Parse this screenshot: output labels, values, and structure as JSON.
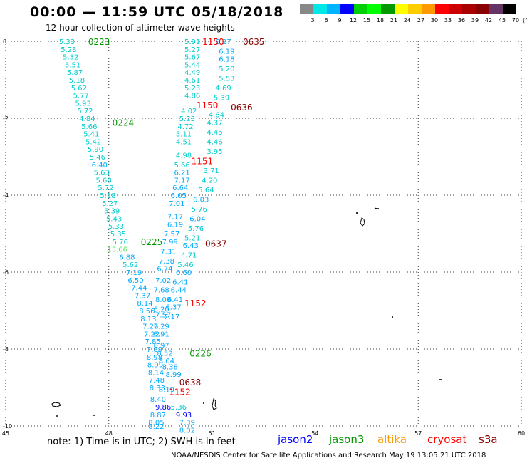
{
  "header": {
    "title": "00:00 — 11:59 UTC 05/18/2018",
    "subtitle": "12 hour collection of altimeter wave heights"
  },
  "colorbar": {
    "colors": [
      "#888888",
      "#00e8e8",
      "#00b4ff",
      "#0000ff",
      "#00d000",
      "#00ff00",
      "#009900",
      "#ffff00",
      "#ffcc00",
      "#ff9900",
      "#ff0000",
      "#cc0000",
      "#aa0000",
      "#880000",
      "#663366",
      "#000000"
    ],
    "labels": [
      "3",
      "6",
      "9",
      "12",
      "15",
      "18",
      "21",
      "24",
      "27",
      "30",
      "33",
      "36",
      "39",
      "42",
      "45",
      "70"
    ],
    "unit": "(ft)"
  },
  "axes": {
    "x_ticks": [
      "45",
      "48",
      "51",
      "54",
      "57",
      "60"
    ],
    "y_ticks": [
      "0",
      "-2",
      "-4",
      "-6",
      "-8",
      "-10"
    ]
  },
  "footer": {
    "note": "note: 1) Time is in UTC; 2) SWH is in feet",
    "credit": "NOAA/NESDIS Center for Satellite Applications and Research    May 19 13:05:21 UTC 2018",
    "legend": [
      {
        "label": "jason2",
        "color": "#0000ff"
      },
      {
        "label": "jason3",
        "color": "#009900"
      },
      {
        "label": "altika",
        "color": "#ff9900"
      },
      {
        "label": "cryosat",
        "color": "#ff0000"
      },
      {
        "label": "s3a",
        "color": "#880000"
      }
    ]
  },
  "track_times": [
    {
      "text": "0223",
      "color": "#009900",
      "lon": 47.4,
      "lat": 0.0
    },
    {
      "text": "0224",
      "color": "#009900",
      "lon": 48.1,
      "lat": -2.1
    },
    {
      "text": "0225",
      "color": "#009900",
      "lon": 48.93,
      "lat": -5.2
    },
    {
      "text": "0226",
      "color": "#009900",
      "lon": 50.35,
      "lat": -8.1
    },
    {
      "text": "1150",
      "color": "#ff0000",
      "lon": 50.72,
      "lat": 0.0
    },
    {
      "text": "1150",
      "color": "#ff0000",
      "lon": 50.55,
      "lat": -1.65
    },
    {
      "text": "1151",
      "color": "#ff0000",
      "lon": 50.4,
      "lat": -3.1
    },
    {
      "text": "1152",
      "color": "#ff0000",
      "lon": 50.2,
      "lat": -6.8
    },
    {
      "text": "1152",
      "color": "#ff0000",
      "lon": 49.75,
      "lat": -9.1
    },
    {
      "text": "0635",
      "color": "#880000",
      "lon": 51.9,
      "lat": 0.0
    },
    {
      "text": "0636",
      "color": "#880000",
      "lon": 51.55,
      "lat": -1.7
    },
    {
      "text": "0637",
      "color": "#880000",
      "lon": 50.8,
      "lat": -5.25
    },
    {
      "text": "0638",
      "color": "#880000",
      "lon": 50.05,
      "lat": -8.85
    }
  ],
  "observations": [
    {
      "v": "5.33",
      "c": "#00cccc",
      "lon": 46.55,
      "lat": 0.0
    },
    {
      "v": "5.28",
      "c": "#00cccc",
      "lon": 46.6,
      "lat": -0.2
    },
    {
      "v": "5.32",
      "c": "#00cccc",
      "lon": 46.66,
      "lat": -0.4
    },
    {
      "v": "5.51",
      "c": "#00cccc",
      "lon": 46.72,
      "lat": -0.6
    },
    {
      "v": "5.87",
      "c": "#00cccc",
      "lon": 46.78,
      "lat": -0.8
    },
    {
      "v": "5.18",
      "c": "#00cccc",
      "lon": 46.84,
      "lat": -1.0
    },
    {
      "v": "5.62",
      "c": "#00cccc",
      "lon": 46.9,
      "lat": -1.2
    },
    {
      "v": "5.77",
      "c": "#00cccc",
      "lon": 46.96,
      "lat": -1.4
    },
    {
      "v": "5.93",
      "c": "#00cccc",
      "lon": 47.02,
      "lat": -1.6
    },
    {
      "v": "5.72",
      "c": "#00cccc",
      "lon": 47.08,
      "lat": -1.8
    },
    {
      "v": "4.84",
      "c": "#00cccc",
      "lon": 47.14,
      "lat": -2.0
    },
    {
      "v": "5.66",
      "c": "#00cccc",
      "lon": 47.2,
      "lat": -2.2
    },
    {
      "v": "5.41",
      "c": "#00cccc",
      "lon": 47.26,
      "lat": -2.4
    },
    {
      "v": "5.42",
      "c": "#00cccc",
      "lon": 47.32,
      "lat": -2.6
    },
    {
      "v": "5.90",
      "c": "#00cccc",
      "lon": 47.38,
      "lat": -2.8
    },
    {
      "v": "5.46",
      "c": "#00cccc",
      "lon": 47.44,
      "lat": -3.0
    },
    {
      "v": "6.40",
      "c": "#00aaff",
      "lon": 47.5,
      "lat": -3.2
    },
    {
      "v": "5.63",
      "c": "#00cccc",
      "lon": 47.56,
      "lat": -3.4
    },
    {
      "v": "5.68",
      "c": "#00cccc",
      "lon": 47.62,
      "lat": -3.6
    },
    {
      "v": "5.72",
      "c": "#00cccc",
      "lon": 47.68,
      "lat": -3.8
    },
    {
      "v": "5.18",
      "c": "#00cccc",
      "lon": 47.74,
      "lat": -4.0
    },
    {
      "v": "5.27",
      "c": "#00cccc",
      "lon": 47.8,
      "lat": -4.2
    },
    {
      "v": "5.39",
      "c": "#00cccc",
      "lon": 47.86,
      "lat": -4.4
    },
    {
      "v": "5.43",
      "c": "#00cccc",
      "lon": 47.92,
      "lat": -4.6
    },
    {
      "v": "5.33",
      "c": "#00cccc",
      "lon": 47.98,
      "lat": -4.8
    },
    {
      "v": "5.35",
      "c": "#00cccc",
      "lon": 48.04,
      "lat": -5.0
    },
    {
      "v": "5.76",
      "c": "#00cccc",
      "lon": 48.1,
      "lat": -5.2
    },
    {
      "v": "13.66",
      "c": "#55dd55",
      "lon": 47.95,
      "lat": -5.4
    },
    {
      "v": "6.88",
      "c": "#00aaff",
      "lon": 48.3,
      "lat": -5.6
    },
    {
      "v": "5.62",
      "c": "#00cccc",
      "lon": 48.4,
      "lat": -5.8
    },
    {
      "v": "7.19",
      "c": "#00aaff",
      "lon": 48.5,
      "lat": -6.0
    },
    {
      "v": "6.50",
      "c": "#00aaff",
      "lon": 48.55,
      "lat": -6.2
    },
    {
      "v": "7.44",
      "c": "#00aaff",
      "lon": 48.65,
      "lat": -6.4
    },
    {
      "v": "7.37",
      "c": "#00aaff",
      "lon": 48.75,
      "lat": -6.6
    },
    {
      "v": "8.14",
      "c": "#00aaff",
      "lon": 48.82,
      "lat": -6.8
    },
    {
      "v": "8.56",
      "c": "#00aaff",
      "lon": 48.88,
      "lat": -7.0
    },
    {
      "v": "8.13",
      "c": "#00aaff",
      "lon": 48.92,
      "lat": -7.2
    },
    {
      "v": "7.26",
      "c": "#00aaff",
      "lon": 48.98,
      "lat": -7.4
    },
    {
      "v": "7.22",
      "c": "#00aaff",
      "lon": 49.02,
      "lat": -7.6
    },
    {
      "v": "7.85",
      "c": "#00aaff",
      "lon": 49.05,
      "lat": -7.8
    },
    {
      "v": "7.89",
      "c": "#00aaff",
      "lon": 49.1,
      "lat": -8.0
    },
    {
      "v": "8.98",
      "c": "#00aaff",
      "lon": 49.1,
      "lat": -8.2
    },
    {
      "v": "8.99",
      "c": "#00aaff",
      "lon": 49.12,
      "lat": -8.4
    },
    {
      "v": "8.14",
      "c": "#00aaff",
      "lon": 49.14,
      "lat": -8.6
    },
    {
      "v": "7.48",
      "c": "#00aaff",
      "lon": 49.16,
      "lat": -8.8
    },
    {
      "v": "8.33",
      "c": "#00aaff",
      "lon": 49.18,
      "lat": -9.0
    },
    {
      "v": "8.40",
      "c": "#00aaff",
      "lon": 49.2,
      "lat": -9.3
    },
    {
      "v": "9.86",
      "c": "#0000ff",
      "lon": 49.35,
      "lat": -9.5
    },
    {
      "v": "8.87",
      "c": "#00aaff",
      "lon": 49.2,
      "lat": -9.7
    },
    {
      "v": "8.05",
      "c": "#00aaff",
      "lon": 49.15,
      "lat": -9.9
    },
    {
      "v": "8.22",
      "c": "#00aaff",
      "lon": 49.15,
      "lat": -10.0
    },
    {
      "v": "5.91",
      "c": "#00cccc",
      "lon": 50.2,
      "lat": 0.0
    },
    {
      "v": "5.27",
      "c": "#00cccc",
      "lon": 50.2,
      "lat": -0.2
    },
    {
      "v": "5.67",
      "c": "#00cccc",
      "lon": 50.2,
      "lat": -0.4
    },
    {
      "v": "5.44",
      "c": "#00cccc",
      "lon": 50.2,
      "lat": -0.6
    },
    {
      "v": "4.49",
      "c": "#00cccc",
      "lon": 50.2,
      "lat": -0.8
    },
    {
      "v": "4.61",
      "c": "#00cccc",
      "lon": 50.2,
      "lat": -1.0
    },
    {
      "v": "5.23",
      "c": "#00cccc",
      "lon": 50.2,
      "lat": -1.2
    },
    {
      "v": "4.86",
      "c": "#00cccc",
      "lon": 50.2,
      "lat": -1.4
    },
    {
      "v": "4.02",
      "c": "#00cccc",
      "lon": 50.1,
      "lat": -1.8
    },
    {
      "v": "5.23",
      "c": "#00cccc",
      "lon": 50.05,
      "lat": -2.0
    },
    {
      "v": "4.72",
      "c": "#00cccc",
      "lon": 50.0,
      "lat": -2.2
    },
    {
      "v": "5.11",
      "c": "#00cccc",
      "lon": 49.95,
      "lat": -2.4
    },
    {
      "v": "4.51",
      "c": "#00cccc",
      "lon": 49.95,
      "lat": -2.6
    },
    {
      "v": "4.98",
      "c": "#00cccc",
      "lon": 49.95,
      "lat": -2.95
    },
    {
      "v": "5.66",
      "c": "#00cccc",
      "lon": 49.9,
      "lat": -3.2
    },
    {
      "v": "6.21",
      "c": "#00aaff",
      "lon": 49.9,
      "lat": -3.4
    },
    {
      "v": "7.17",
      "c": "#00aaff",
      "lon": 49.9,
      "lat": -3.6
    },
    {
      "v": "6.64",
      "c": "#00aaff",
      "lon": 49.85,
      "lat": -3.8
    },
    {
      "v": "6.05",
      "c": "#00aaff",
      "lon": 49.8,
      "lat": -4.0
    },
    {
      "v": "7.01",
      "c": "#00aaff",
      "lon": 49.75,
      "lat": -4.2
    },
    {
      "v": "7.17",
      "c": "#00aaff",
      "lon": 49.7,
      "lat": -4.55
    },
    {
      "v": "6.19",
      "c": "#00aaff",
      "lon": 49.7,
      "lat": -4.75
    },
    {
      "v": "7.57",
      "c": "#00aaff",
      "lon": 49.6,
      "lat": -5.0
    },
    {
      "v": "7.99",
      "c": "#00aaff",
      "lon": 49.55,
      "lat": -5.2
    },
    {
      "v": "7.31",
      "c": "#00aaff",
      "lon": 49.5,
      "lat": -5.45
    },
    {
      "v": "7.38",
      "c": "#00aaff",
      "lon": 49.45,
      "lat": -5.7
    },
    {
      "v": "6.74",
      "c": "#00aaff",
      "lon": 49.4,
      "lat": -5.9
    },
    {
      "v": "7.02",
      "c": "#00aaff",
      "lon": 49.35,
      "lat": -6.2
    },
    {
      "v": "7.68",
      "c": "#00aaff",
      "lon": 49.3,
      "lat": -6.45
    },
    {
      "v": "8.00",
      "c": "#00aaff",
      "lon": 49.35,
      "lat": -6.7
    },
    {
      "v": "6.20",
      "c": "#00aaff",
      "lon": 49.3,
      "lat": -6.95
    },
    {
      "v": "7.57",
      "c": "#00aaff",
      "lon": 49.35,
      "lat": -7.1
    },
    {
      "v": "7.29",
      "c": "#00aaff",
      "lon": 49.3,
      "lat": -7.4
    },
    {
      "v": "6.91",
      "c": "#00aaff",
      "lon": 49.3,
      "lat": -7.6
    },
    {
      "v": "6.97",
      "c": "#00aaff",
      "lon": 49.3,
      "lat": -7.9
    },
    {
      "v": "8.52",
      "c": "#00aaff",
      "lon": 49.4,
      "lat": -8.1
    },
    {
      "v": "8.04",
      "c": "#00aaff",
      "lon": 49.45,
      "lat": -8.3
    },
    {
      "v": "8.38",
      "c": "#00aaff",
      "lon": 49.55,
      "lat": -8.45
    },
    {
      "v": "8.99",
      "c": "#00aaff",
      "lon": 49.65,
      "lat": -8.65
    },
    {
      "v": "8.19",
      "c": "#00aaff",
      "lon": 49.45,
      "lat": -9.05
    },
    {
      "v": "5.36",
      "c": "#00cccc",
      "lon": 49.8,
      "lat": -9.5
    },
    {
      "v": "9.93",
      "c": "#0000ff",
      "lon": 49.95,
      "lat": -9.7
    },
    {
      "v": "7.39",
      "c": "#00aaff",
      "lon": 50.05,
      "lat": -9.9
    },
    {
      "v": "8.02",
      "c": "#00aaff",
      "lon": 50.05,
      "lat": -10.1
    },
    {
      "v": "6.27",
      "c": "#00aaff",
      "lon": 51.1,
      "lat": 0.0
    },
    {
      "v": "6.19",
      "c": "#00aaff",
      "lon": 51.2,
      "lat": -0.25
    },
    {
      "v": "6.18",
      "c": "#00aaff",
      "lon": 51.2,
      "lat": -0.45
    },
    {
      "v": "5.20",
      "c": "#00cccc",
      "lon": 51.2,
      "lat": -0.7
    },
    {
      "v": "5.53",
      "c": "#00cccc",
      "lon": 51.2,
      "lat": -0.95
    },
    {
      "v": "4.69",
      "c": "#00cccc",
      "lon": 51.1,
      "lat": -1.2
    },
    {
      "v": "5.39",
      "c": "#00cccc",
      "lon": 51.05,
      "lat": -1.45
    },
    {
      "v": "4.64",
      "c": "#00cccc",
      "lon": 50.9,
      "lat": -1.9
    },
    {
      "v": "4.37",
      "c": "#00cccc",
      "lon": 50.85,
      "lat": -2.1
    },
    {
      "v": "4.45",
      "c": "#00cccc",
      "lon": 50.85,
      "lat": -2.35
    },
    {
      "v": "4.46",
      "c": "#00cccc",
      "lon": 50.85,
      "lat": -2.6
    },
    {
      "v": "3.95",
      "c": "#00cccc",
      "lon": 50.85,
      "lat": -2.85
    },
    {
      "v": "3.71",
      "c": "#00cccc",
      "lon": 50.75,
      "lat": -3.35
    },
    {
      "v": "4.20",
      "c": "#00cccc",
      "lon": 50.7,
      "lat": -3.6
    },
    {
      "v": "5.64",
      "c": "#00cccc",
      "lon": 50.6,
      "lat": -3.85
    },
    {
      "v": "6.03",
      "c": "#00aaff",
      "lon": 50.45,
      "lat": -4.1
    },
    {
      "v": "5.76",
      "c": "#00cccc",
      "lon": 50.4,
      "lat": -4.35
    },
    {
      "v": "6.04",
      "c": "#00aaff",
      "lon": 50.35,
      "lat": -4.6
    },
    {
      "v": "5.76",
      "c": "#00cccc",
      "lon": 50.3,
      "lat": -4.85
    },
    {
      "v": "5.21",
      "c": "#00cccc",
      "lon": 50.2,
      "lat": -5.1
    },
    {
      "v": "6.43",
      "c": "#00aaff",
      "lon": 50.15,
      "lat": -5.3
    },
    {
      "v": "4.71",
      "c": "#00cccc",
      "lon": 50.1,
      "lat": -5.55
    },
    {
      "v": "5.46",
      "c": "#00cccc",
      "lon": 50.0,
      "lat": -5.8
    },
    {
      "v": "6.60",
      "c": "#00aaff",
      "lon": 49.95,
      "lat": -6.0
    },
    {
      "v": "6.41",
      "c": "#00aaff",
      "lon": 49.85,
      "lat": -6.25
    },
    {
      "v": "6.44",
      "c": "#00aaff",
      "lon": 49.8,
      "lat": -6.45
    },
    {
      "v": "6.41",
      "c": "#00aaff",
      "lon": 49.7,
      "lat": -6.7
    },
    {
      "v": "6.37",
      "c": "#00aaff",
      "lon": 49.65,
      "lat": -6.9
    },
    {
      "v": "7.17",
      "c": "#00aaff",
      "lon": 49.6,
      "lat": -7.15
    }
  ],
  "islands_label": ""
}
